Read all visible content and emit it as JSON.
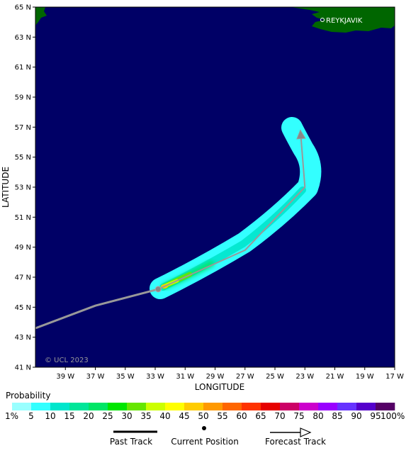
{
  "map": {
    "copyright": "© UCL 2023",
    "city_label": "REYKJAVIK",
    "axis_x_title": "LONGITUDE",
    "axis_y_title": "LATITUDE",
    "lat_ticks": [
      "65 N",
      "63 N",
      "61 N",
      "59 N",
      "57 N",
      "55 N",
      "53 N",
      "51 N",
      "49 N",
      "47 N",
      "45 N",
      "43 N",
      "41 N"
    ],
    "lon_ticks": [
      "39 W",
      "37 W",
      "35 W",
      "33 W",
      "31 W",
      "29 W",
      "27 W",
      "25 W",
      "23 W",
      "21 W",
      "19 W",
      "17 W"
    ],
    "colors": {
      "ocean": "#000066",
      "land": "#006600",
      "track": "#999999"
    },
    "past_track": [
      [
        41.0,
        43.6
      ],
      [
        37.0,
        45.1
      ],
      [
        32.8,
        46.2
      ]
    ],
    "current_position": [
      32.8,
      46.2
    ],
    "forecast_track": [
      [
        32.8,
        46.2
      ],
      [
        27.0,
        48.8
      ],
      [
        23.0,
        53.0
      ],
      [
        23.3,
        56.8
      ]
    ]
  },
  "legend": {
    "title": "Probability",
    "scale_labels": [
      "1%",
      "5",
      "10",
      "15",
      "20",
      "25",
      "30",
      "35",
      "40",
      "45",
      "50",
      "55",
      "60",
      "65",
      "70",
      "75",
      "80",
      "85",
      "90",
      "95",
      "100%"
    ],
    "colors": [
      "#99FFFF",
      "#33FFFF",
      "#00E6CC",
      "#00E699",
      "#00E666",
      "#00E600",
      "#66E600",
      "#CCFF00",
      "#FFFF00",
      "#FFCC00",
      "#FF9900",
      "#FF6600",
      "#FF3300",
      "#E60000",
      "#CC0066",
      "#CC00CC",
      "#9900FF",
      "#6633FF",
      "#5500CC",
      "#550066"
    ],
    "past_track_label": "Past Track",
    "current_position_label": "Current Position",
    "forecast_track_label": "Forecast Track"
  }
}
